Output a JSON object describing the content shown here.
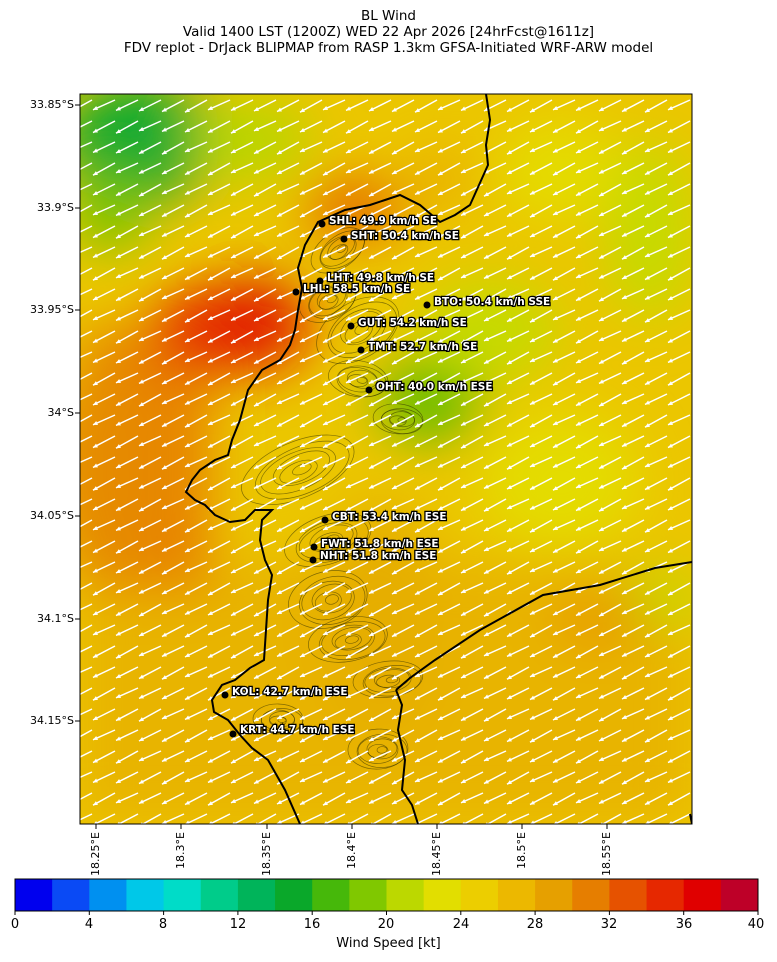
{
  "title": {
    "line1": "BL Wind",
    "line2": "Valid 1400 LST (1200Z) WED 22 Apr 2026 [24hrFcst@1611z]",
    "line3": "FDV replot - DrJack BLIPMAP from RASP 1.3km GFSA-Initiated WRF-ARW model"
  },
  "map": {
    "lat_labels": [
      "33.85°S",
      "33.9°S",
      "33.95°S",
      "34°S",
      "34.05°S",
      "34.1°S",
      "34.15°S"
    ],
    "lon_labels": [
      "18.25°E",
      "18.3°E",
      "18.35°E",
      "18.4°E",
      "18.45°E",
      "18.5°E",
      "18.55°E"
    ],
    "wind_direction": "from ESE / SE",
    "stations": [
      {
        "code": "SHL",
        "label": "SHL: 49.9 km/h SE"
      },
      {
        "code": "SHT",
        "label": "SHT: 50.4 km/h SE"
      },
      {
        "code": "LHT",
        "label": "LHT: 49.8 km/h SE"
      },
      {
        "code": "LHL",
        "label": "LHL: 58.5 km/h SE"
      },
      {
        "code": "BTO",
        "label": "BTO: 50.4 km/h SSE"
      },
      {
        "code": "GUT",
        "label": "GUT: 54.2 km/h SE"
      },
      {
        "code": "TMT",
        "label": "TMT: 52.7 km/h SE"
      },
      {
        "code": "OHT",
        "label": "OHT: 40.0 km/h ESE"
      },
      {
        "code": "CBT",
        "label": "CBT: 53.4 km/h ESE"
      },
      {
        "code": "FWT",
        "label": "FWT: 51.8 km/h ESE"
      },
      {
        "code": "NHT",
        "label": "NHT: 51.8 km/h ESE"
      },
      {
        "code": "KOL",
        "label": "KOL: 42.7 km/h ESE"
      },
      {
        "code": "KRT",
        "label": "KRT: 44.7 km/h ESE"
      }
    ]
  },
  "colorbar": {
    "title": "Wind Speed [kt]",
    "tick_labels": [
      "0",
      "4",
      "8",
      "12",
      "16",
      "20",
      "24",
      "28",
      "32",
      "36",
      "40"
    ],
    "colors": [
      "#0000ee",
      "#0a4af5",
      "#0090f0",
      "#00c8e8",
      "#00dcc8",
      "#00cc8a",
      "#00b45a",
      "#0aa82a",
      "#46b80a",
      "#80c800",
      "#bcd800",
      "#e2de00",
      "#ecce00",
      "#ecb800",
      "#e6a000",
      "#e67e00",
      "#e65200",
      "#e62800",
      "#e00000",
      "#be0028"
    ]
  }
}
